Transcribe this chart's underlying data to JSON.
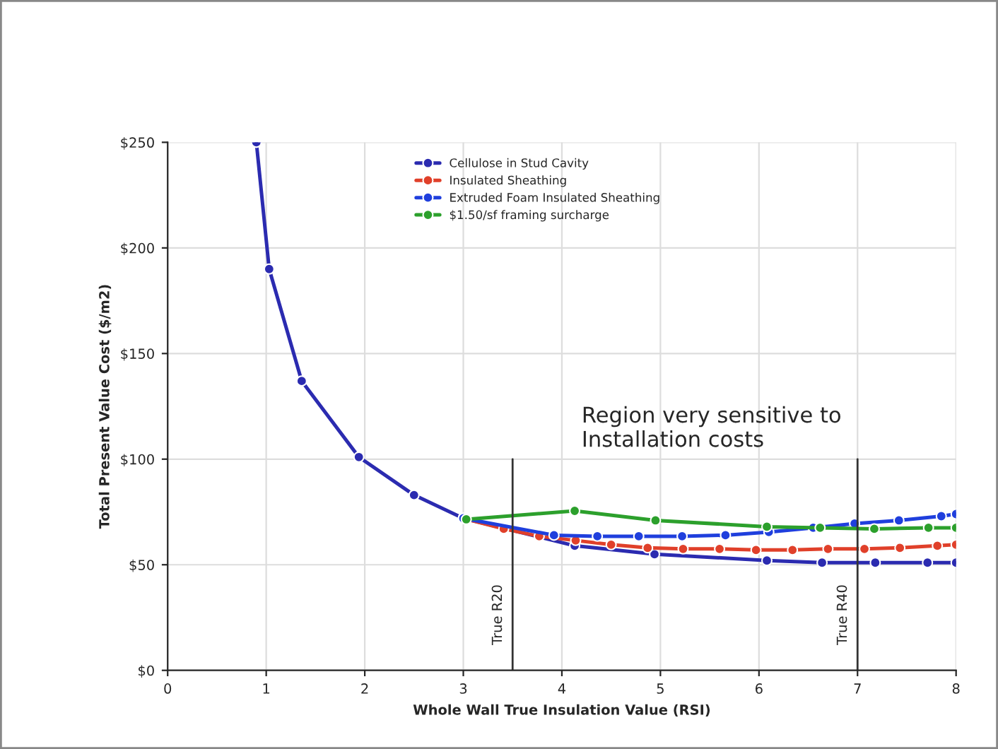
{
  "chart_data": {
    "type": "line",
    "xlabel": "Whole Wall True Insulation Value (RSI)",
    "ylabel": "Total Present Value Cost ($/m2)",
    "xlim": [
      0,
      8
    ],
    "xticks": [
      0,
      1,
      2,
      3,
      4,
      5,
      6,
      7,
      8
    ],
    "ylim": [
      0,
      250
    ],
    "yticks": [
      {
        "value": 0,
        "label": "$0"
      },
      {
        "value": 50,
        "label": "$50"
      },
      {
        "value": 100,
        "label": "$100"
      },
      {
        "value": 150,
        "label": "$150"
      },
      {
        "value": 200,
        "label": "$200"
      },
      {
        "value": 250,
        "label": "$250"
      }
    ],
    "grid": true,
    "legend": "top",
    "marker": "circle",
    "series": [
      {
        "name": "Cellulose in Stud Cavity",
        "color": "#2b2bb0",
        "x": [
          0.9,
          1.03,
          1.36,
          1.94,
          2.5,
          3.0,
          4.13,
          4.94,
          6.08,
          6.64,
          7.18,
          7.71,
          8.0
        ],
        "values": [
          250,
          190,
          137,
          101,
          83,
          72,
          59,
          55,
          52,
          51,
          51,
          51,
          51
        ]
      },
      {
        "name": "Insulated Sheathing",
        "color": "#e0402a",
        "x": [
          3.0,
          3.41,
          3.77,
          4.14,
          4.5,
          4.87,
          5.23,
          5.6,
          5.97,
          6.34,
          6.7,
          7.07,
          7.43,
          7.81,
          8.0
        ],
        "values": [
          72,
          67,
          63.5,
          61.5,
          59.5,
          58,
          57.5,
          57.5,
          57,
          57,
          57.5,
          57.5,
          58,
          59,
          59.5
        ]
      },
      {
        "name": "Extruded Foam Insulated Sheathing",
        "color": "#1f3fdd",
        "x": [
          3.0,
          3.92,
          4.36,
          4.78,
          5.22,
          5.66,
          6.1,
          6.55,
          6.97,
          7.42,
          7.85,
          8.0
        ],
        "values": [
          72,
          64,
          63.5,
          63.5,
          63.5,
          64,
          65.5,
          67.5,
          69.5,
          71,
          73,
          74
        ]
      },
      {
        "name": "$1.50/sf framing surcharge",
        "color": "#2ca02c",
        "x": [
          3.03,
          4.13,
          4.95,
          6.08,
          6.62,
          7.17,
          7.72,
          8.0
        ],
        "values": [
          71.5,
          75.5,
          71,
          68,
          67.5,
          67,
          67.5,
          67.5
        ]
      }
    ],
    "ref_lines": [
      {
        "axis": "x",
        "value": 3.5,
        "label": "True R20",
        "color": "#333333"
      },
      {
        "axis": "x",
        "value": 7,
        "label": "True R40",
        "color": "#333333"
      }
    ],
    "annotations": [
      "Region very sensitive to\nInstallation costs"
    ]
  }
}
